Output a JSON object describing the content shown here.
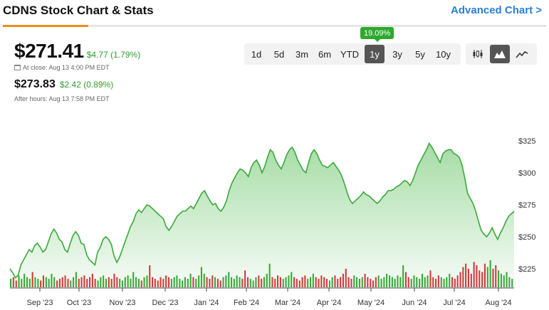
{
  "header": {
    "title": "CDNS Stock Chart & Stats",
    "advanced_link": "Advanced Chart >"
  },
  "quote": {
    "price": "$271.41",
    "change": "$4.77 (1.79%)",
    "close_label": "At close: Aug 13 4:00 PM EDT",
    "after_price": "$273.83",
    "after_change": "$2.42 (0.89%)",
    "after_label": "After hours: Aug 13 7:58 PM EDT",
    "positive_color": "#2e9e2e"
  },
  "ranges": {
    "items": [
      "1d",
      "5d",
      "3m",
      "6m",
      "YTD",
      "1y",
      "3y",
      "5y",
      "10y"
    ],
    "active": "1y",
    "badge": "19.09%"
  },
  "chart_types": {
    "items": [
      "candlestick-icon",
      "mountain-icon",
      "line-icon"
    ],
    "active": "mountain-icon"
  },
  "chart_data": {
    "type": "area",
    "y_ticks": [
      "$325",
      "$300",
      "$275",
      "$250",
      "$225"
    ],
    "x_ticks": [
      "Sep '23",
      "Oct '23",
      "Nov '23",
      "Dec '23",
      "Jan '24",
      "Feb '24",
      "Mar '24",
      "Apr '24",
      "May '24",
      "Jun '24",
      "Jul '24",
      "Aug '24"
    ],
    "ylim": [
      210,
      335
    ],
    "line_color": "#3aa83a",
    "prices": [
      225,
      222,
      218,
      220,
      228,
      232,
      236,
      240,
      238,
      243,
      245,
      242,
      238,
      240,
      246,
      252,
      256,
      253,
      248,
      246,
      240,
      238,
      245,
      251,
      254,
      251,
      245,
      244,
      236,
      232,
      230,
      228,
      238,
      242,
      248,
      250,
      248,
      244,
      235,
      230,
      234,
      240,
      246,
      252,
      258,
      262,
      268,
      271,
      269,
      272,
      275,
      274,
      272,
      270,
      268,
      266,
      264,
      258,
      255,
      258,
      262,
      266,
      268,
      270,
      270,
      272,
      274,
      272,
      276,
      280,
      284,
      286,
      282,
      278,
      275,
      276,
      272,
      270,
      273,
      278,
      286,
      292,
      296,
      300,
      303,
      302,
      300,
      297,
      304,
      308,
      310,
      306,
      300,
      305,
      312,
      318,
      316,
      310,
      306,
      303,
      308,
      314,
      318,
      320,
      316,
      310,
      306,
      302,
      300,
      308,
      315,
      318,
      315,
      310,
      306,
      305,
      304,
      306,
      308,
      305,
      302,
      298,
      292,
      285,
      279,
      276,
      278,
      280,
      282,
      285,
      283,
      282,
      280,
      278,
      276,
      278,
      281,
      283,
      286,
      286,
      287,
      289,
      290,
      292,
      294,
      293,
      290,
      294,
      300,
      306,
      310,
      314,
      318,
      323,
      320,
      316,
      312,
      308,
      315,
      317,
      318,
      318,
      315,
      314,
      312,
      306,
      296,
      284,
      280,
      276,
      270,
      262,
      255,
      252,
      250,
      253,
      257,
      252,
      248,
      253,
      257,
      262,
      266,
      268,
      270
    ],
    "volumes": [
      0.5,
      0.6,
      0.4,
      0.7,
      0.5,
      0.8,
      0.6,
      0.5,
      0.9,
      0.6,
      0.5,
      0.4,
      0.7,
      0.6,
      0.5,
      0.8,
      0.6,
      0.4,
      0.5,
      0.6,
      0.7,
      0.5,
      0.4,
      0.6,
      0.9,
      0.5,
      0.6,
      0.7,
      0.5,
      0.6,
      0.8,
      0.5,
      0.4,
      0.6,
      0.7,
      0.5,
      0.6,
      0.5,
      0.8,
      0.6,
      0.5,
      0.4,
      0.6,
      0.7,
      0.5,
      0.9,
      0.6,
      0.5,
      0.4,
      0.6,
      0.7,
      1.3,
      0.6,
      0.5,
      0.4,
      0.6,
      0.5,
      0.7,
      0.6,
      0.5,
      0.6,
      0.7,
      0.5,
      0.4,
      0.6,
      0.5,
      0.8,
      0.6,
      0.5,
      0.7,
      1.2,
      0.8,
      0.6,
      0.5,
      0.7,
      0.6,
      0.5,
      0.4,
      0.6,
      0.7,
      0.9,
      0.6,
      0.5,
      0.7,
      0.6,
      0.5,
      1.0,
      0.6,
      0.5,
      0.4,
      0.6,
      0.7,
      0.5,
      0.6,
      0.8,
      1.4,
      0.6,
      0.5,
      0.7,
      0.6,
      0.5,
      0.6,
      0.7,
      0.9,
      0.6,
      0.5,
      0.4,
      0.6,
      0.7,
      0.5,
      0.6,
      0.8,
      0.6,
      0.5,
      0.7,
      0.6,
      0.5,
      0.4,
      0.6,
      0.7,
      0.5,
      0.6,
      0.8,
      1.1,
      0.6,
      0.5,
      0.7,
      0.6,
      0.5,
      0.6,
      0.8,
      0.6,
      0.5,
      0.4,
      0.6,
      0.7,
      0.5,
      0.6,
      0.8,
      0.7,
      0.6,
      0.5,
      0.7,
      0.6,
      1.3,
      0.9,
      0.6,
      0.5,
      0.7,
      0.6,
      0.5,
      0.8,
      0.6,
      0.7,
      1.0,
      0.6,
      0.5,
      0.7,
      0.6,
      0.5,
      0.6,
      0.8,
      0.6,
      0.5,
      0.7,
      0.9,
      1.2,
      1.4,
      1.1,
      0.8,
      1.5,
      1.3,
      1.0,
      0.9,
      1.4,
      1.2,
      1.6,
      1.1,
      1.3,
      1.0,
      0.8,
      0.7,
      0.9,
      0.6,
      0.5
    ]
  }
}
